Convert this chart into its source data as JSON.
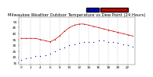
{
  "title": "Milwaukee Weather Outdoor Temperature vs Dew Point (24 Hours)",
  "temp_data_x": [
    0,
    1,
    2,
    3,
    4,
    5,
    6,
    7,
    8,
    9,
    10,
    11,
    12,
    13,
    14,
    15,
    16,
    17,
    18,
    19,
    20,
    21,
    22,
    23
  ],
  "temp_data_y": [
    36,
    36,
    36,
    36,
    35,
    34,
    33,
    35,
    38,
    42,
    45,
    47,
    48,
    48,
    47,
    46,
    45,
    44,
    43,
    42,
    41,
    40,
    39,
    38
  ],
  "dew_data_x": [
    0,
    1,
    2,
    3,
    4,
    5,
    6,
    7,
    8,
    9,
    10,
    11,
    12,
    13,
    14,
    15,
    16,
    17,
    18,
    19,
    20,
    21,
    22,
    23
  ],
  "dew_data_y": [
    18,
    19,
    20,
    21,
    21,
    22,
    23,
    25,
    27,
    28,
    30,
    31,
    32,
    33,
    33,
    33,
    34,
    34,
    33,
    33,
    32,
    31,
    30,
    29
  ],
  "ylim": [
    14,
    54
  ],
  "xlim": [
    -0.5,
    23.5
  ],
  "temp_color": "#cc0000",
  "dew_color": "#0000cc",
  "grid_color": "#bbbbbb",
  "bg_color": "#ffffff",
  "legend_temp_color": "#cc0000",
  "legend_dew_color": "#0000cc",
  "title_fontsize": 3.8,
  "tick_fontsize": 3.0,
  "yticks": [
    15,
    20,
    25,
    30,
    35,
    40,
    45,
    50
  ],
  "ytick_labels": [
    "15",
    "20",
    "25",
    "30",
    "35",
    "40",
    "45",
    "50"
  ],
  "xtick_positions": [
    0,
    2,
    4,
    6,
    8,
    10,
    12,
    14,
    16,
    18,
    20,
    22
  ],
  "xtick_labels": [
    "0",
    "2",
    "4",
    "6",
    "8",
    "10",
    "12",
    "14",
    "16",
    "18",
    "20",
    "22"
  ],
  "grid_x_positions": [
    0,
    2,
    4,
    6,
    8,
    10,
    12,
    14,
    16,
    18,
    20,
    22
  ]
}
